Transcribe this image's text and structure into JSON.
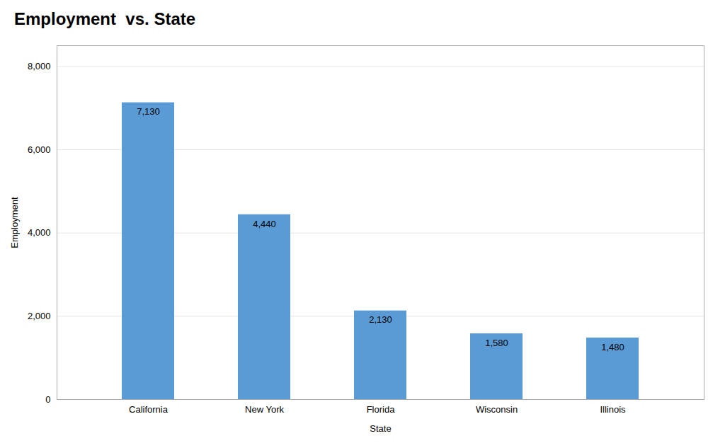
{
  "chart_data": {
    "type": "bar",
    "title": "Employment  vs. State",
    "xlabel": "State",
    "ylabel": "Employment",
    "categories": [
      "California",
      "New York",
      "Florida",
      "Wisconsin",
      "Illinois"
    ],
    "values": [
      7130,
      4440,
      2130,
      1580,
      1480
    ],
    "value_labels": [
      "7,130",
      "4,440",
      "2,130",
      "1,580",
      "1,480"
    ],
    "data_labels": true,
    "color": "#5B9BD5",
    "ylim": [
      0,
      8500
    ],
    "yticks": [
      0,
      {
        "value": 2000,
        "label": "2,000"
      },
      {
        "value": 4000,
        "label": "4,000"
      },
      {
        "value": 6000,
        "label": "6,000"
      },
      {
        "value": 8000,
        "label": "8,000"
      }
    ],
    "grid": true
  }
}
